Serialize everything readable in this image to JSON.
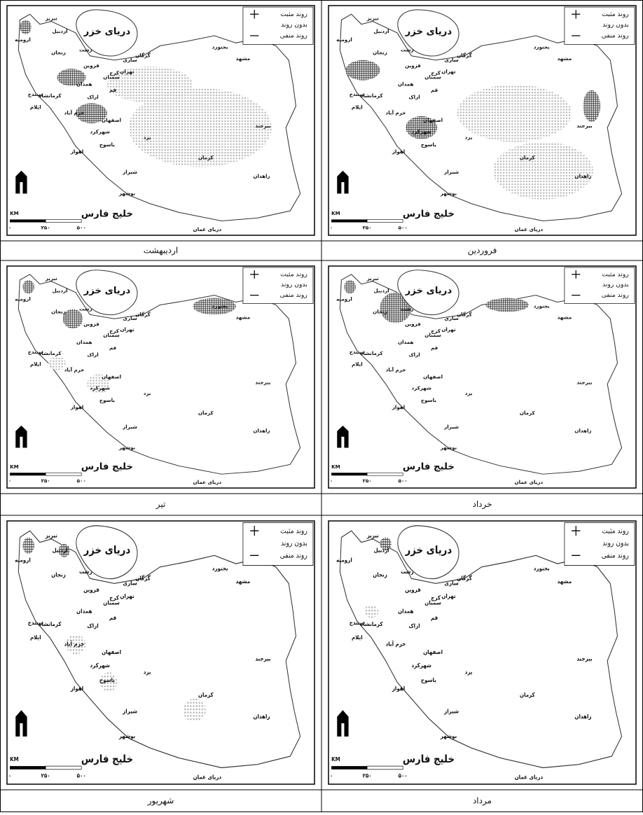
{
  "figure": {
    "panels": [
      {
        "caption": "فروردین"
      },
      {
        "caption": "اردیبهشت"
      },
      {
        "caption": "خرداد"
      },
      {
        "caption": "تیر"
      },
      {
        "caption": "مرداد"
      },
      {
        "caption": "شهریور"
      }
    ],
    "legend": [
      "روند مثبت",
      "بدون روند",
      "روند منفی"
    ],
    "seas": {
      "caspian": "دریای خزر",
      "persian_gulf": "خلیج فارس",
      "oman": "دریای عمان"
    },
    "cities": [
      "تبریز",
      "اردبیل",
      "ارومیه",
      "رشت",
      "زنجان",
      "قزوین",
      "گرگان",
      "ساری",
      "مشهد",
      "بجنورد",
      "تهران",
      "کرج",
      "سمنان",
      "همدان",
      "سنندج",
      "کرمانشاه",
      "ایلام",
      "اراک",
      "قم",
      "خرم آباد",
      "اصفهان",
      "شهرکرد",
      "یاسوج",
      "یزد",
      "اهواز",
      "شیراز",
      "کرمان",
      "بیرجند",
      "زاهدان",
      "بوشهر"
    ],
    "scale": {
      "unit": "KM",
      "ticks": [
        "۰",
        "۲۵۰",
        "۵۰۰"
      ]
    }
  }
}
